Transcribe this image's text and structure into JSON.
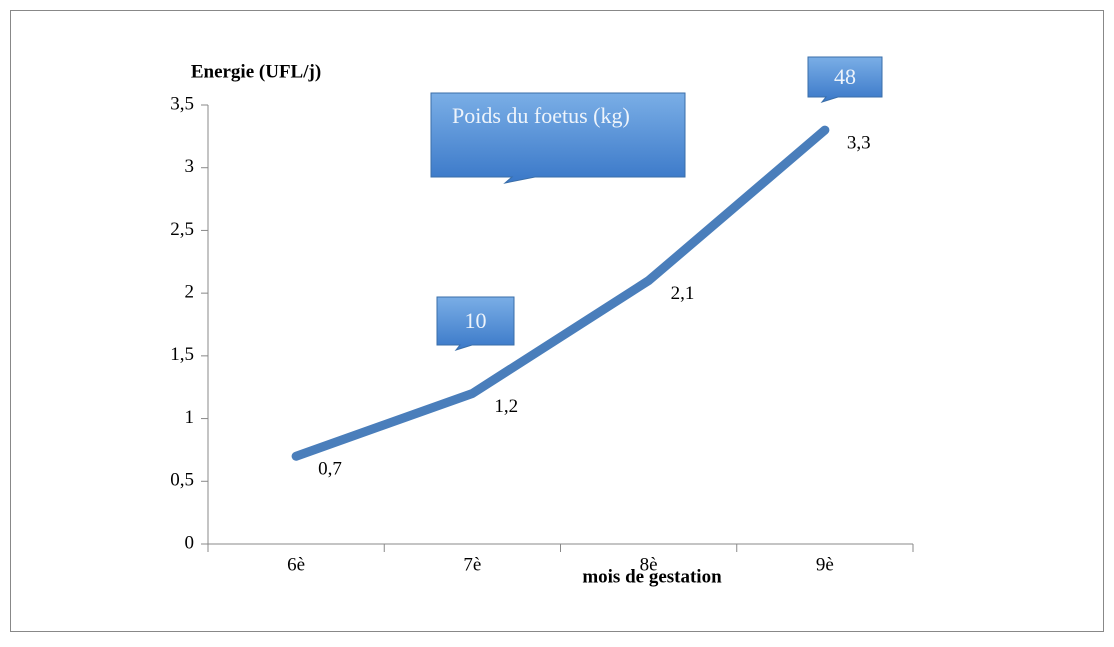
{
  "chart_data": {
    "type": "line",
    "y_label": "Energie (UFL/j)",
    "x_label": "mois de gestation",
    "categories": [
      "6è",
      "7è",
      "8è",
      "9è"
    ],
    "values": [
      0.7,
      1.2,
      2.1,
      3.3
    ],
    "value_labels": [
      "0,7",
      "1,2",
      "2,1",
      "3,3"
    ],
    "color": "#4a7ebb",
    "ylim": [
      0,
      3.5
    ],
    "yticks": [
      0,
      {
        "value": 0.5,
        "label": "0,5"
      },
      1,
      {
        "value": 1.5,
        "label": "1,5"
      },
      2,
      {
        "value": 2.5,
        "label": "2,5"
      },
      3,
      {
        "value": 3.5,
        "label": "3,5"
      }
    ],
    "annotations": [
      "Poids du foetus (kg)",
      "10",
      "48"
    ]
  }
}
